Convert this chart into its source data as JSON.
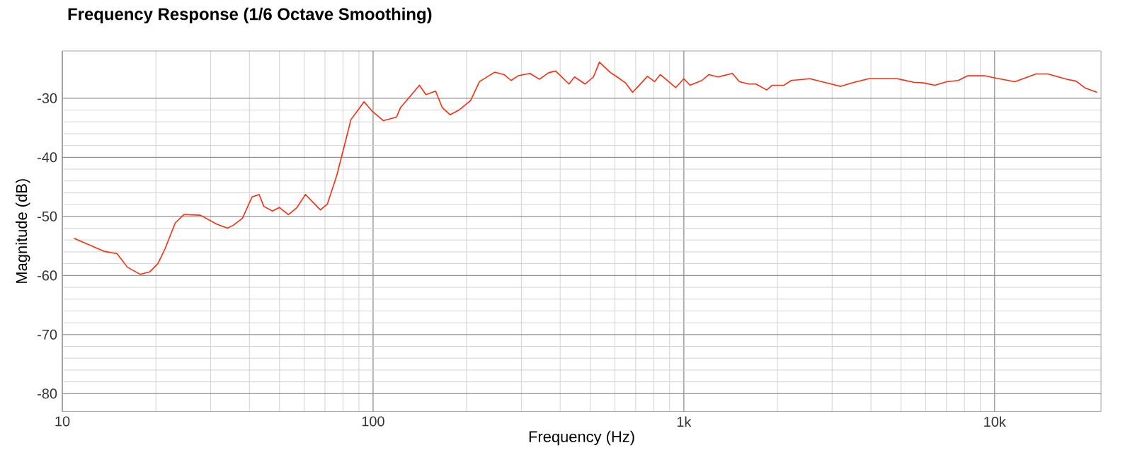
{
  "chart_data": {
    "type": "line",
    "title": "Frequency Response (1/6 Octave Smoothing)",
    "xlabel": "Frequency (Hz)",
    "ylabel": "Magnitude (dB)",
    "log": "x",
    "grid": true,
    "marker": "none",
    "line_style": "solid",
    "xlim": [
      10,
      22000
    ],
    "xticks": [
      10,
      100,
      {
        "value": 1000,
        "label": "1k"
      },
      {
        "value": 10000,
        "label": "10k"
      }
    ],
    "ylim": [
      -83,
      -22
    ],
    "yticks": [
      -80,
      -70,
      -60,
      -50,
      -40,
      -30
    ],
    "series": [
      {
        "color": "#ff2a0a",
        "x": [
          10.9,
          13.6,
          15.0,
          16.2,
          17.8,
          19.1,
          20.3,
          21.4,
          23.1,
          24.6,
          27.8,
          31.4,
          34.0,
          35.5,
          38.0,
          40.8,
          43.0,
          44.5,
          47.4,
          50.0,
          53.4,
          56.9,
          60.6,
          64.3,
          67.7,
          71.3,
          76.4,
          80.5,
          84.9,
          88.9,
          93.6,
          99.3,
          108,
          119,
          122.5,
          141,
          148,
          159,
          167,
          177,
          189,
          206,
          220,
          246,
          264,
          278,
          293,
          320,
          343,
          367,
          387,
          427,
          445,
          481,
          512,
          535,
          579,
          610,
          649,
          684,
          713,
          764,
          805,
          840,
          894,
          942,
          1000,
          1047,
          1143,
          1204,
          1290,
          1433,
          1510,
          1619,
          1706,
          1849,
          1928,
          2103,
          2215,
          2546,
          2780,
          2980,
          3198,
          3487,
          3939,
          4453,
          4857,
          5491,
          5885,
          6428,
          7015,
          7644,
          8200,
          9270,
          10120,
          11620,
          13600,
          14830,
          17050,
          18280,
          19590,
          21360
        ],
        "values": [
          -53.7,
          -55.9,
          -56.3,
          -58.6,
          -59.8,
          -59.4,
          -58.0,
          -55.5,
          -51.1,
          -49.7,
          -49.8,
          -51.3,
          -52.0,
          -51.5,
          -50.3,
          -46.7,
          -46.3,
          -48.3,
          -49.1,
          -48.5,
          -49.7,
          -48.5,
          -46.3,
          -47.7,
          -48.9,
          -47.9,
          -43.1,
          -38.4,
          -33.6,
          -32.2,
          -30.6,
          -32.2,
          -33.8,
          -33.2,
          -31.6,
          -27.8,
          -29.4,
          -28.8,
          -31.6,
          -32.8,
          -32.0,
          -30.4,
          -27.2,
          -25.6,
          -26.0,
          -27.0,
          -26.2,
          -25.8,
          -26.8,
          -25.7,
          -25.4,
          -27.6,
          -26.4,
          -27.6,
          -26.4,
          -23.9,
          -25.6,
          -26.4,
          -27.4,
          -29.0,
          -28.0,
          -26.3,
          -27.2,
          -26.0,
          -27.2,
          -28.2,
          -26.7,
          -27.8,
          -27.0,
          -26.0,
          -26.4,
          -25.8,
          -27.2,
          -27.6,
          -27.6,
          -28.6,
          -27.8,
          -27.8,
          -27.0,
          -26.7,
          -27.2,
          -27.6,
          -28.0,
          -27.4,
          -26.7,
          -26.7,
          -26.7,
          -27.3,
          -27.4,
          -27.8,
          -27.2,
          -27.0,
          -26.2,
          -26.2,
          -26.6,
          -27.2,
          -25.9,
          -25.9,
          -26.8,
          -27.1,
          -28.3,
          -29.0
        ]
      }
    ]
  }
}
